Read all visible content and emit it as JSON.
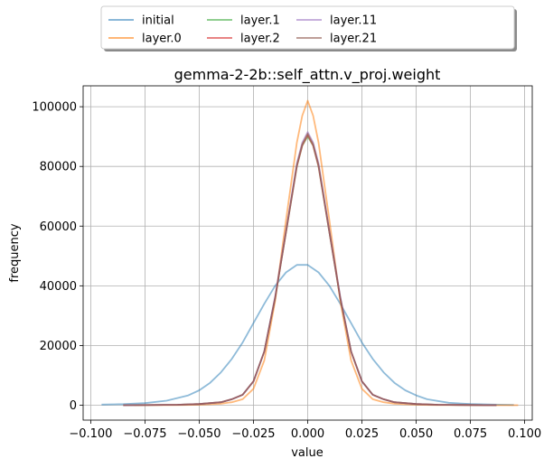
{
  "chart_data": {
    "type": "line",
    "title": "gemma-2-2b::self_attn.v_proj.weight",
    "xlabel": "value",
    "ylabel": "frequency",
    "xlim": [
      -0.1035,
      0.1035
    ],
    "ylim": [
      -5000,
      107000
    ],
    "grid": true,
    "legend_placement": "top-center, above plot (4 columns, shadowed box)",
    "x_ticks": [
      -0.1,
      -0.075,
      -0.05,
      -0.025,
      0.0,
      0.025,
      0.05,
      0.075,
      0.1
    ],
    "x_tick_labels": [
      "−0.100",
      "−0.075",
      "−0.050",
      "−0.025",
      "0.000",
      "0.025",
      "0.050",
      "0.075",
      "0.100"
    ],
    "y_ticks": [
      0,
      20000,
      40000,
      60000,
      80000,
      100000
    ],
    "y_tick_labels": [
      "0",
      "20000",
      "40000",
      "60000",
      "80000",
      "100000"
    ],
    "series": [
      {
        "name": "initial",
        "color": "#1f77b4",
        "opacity": 0.5,
        "x": [
          -0.095,
          -0.085,
          -0.075,
          -0.065,
          -0.055,
          -0.05,
          -0.045,
          -0.04,
          -0.035,
          -0.03,
          -0.025,
          -0.02,
          -0.015,
          -0.01,
          -0.005,
          0.0,
          0.005,
          0.01,
          0.015,
          0.02,
          0.025,
          0.03,
          0.035,
          0.04,
          0.045,
          0.05,
          0.055,
          0.065,
          0.075,
          0.085,
          0.095
        ],
        "y": [
          200,
          350,
          700,
          1500,
          3300,
          5000,
          7500,
          11000,
          15500,
          21000,
          27500,
          34000,
          40000,
          44500,
          47000,
          47000,
          44500,
          40000,
          34000,
          27500,
          21000,
          15500,
          11000,
          7500,
          5000,
          3300,
          2000,
          800,
          400,
          200,
          100
        ]
      },
      {
        "name": "layer.0",
        "color": "#ff7f0e",
        "opacity": 0.55,
        "x": [
          -0.08,
          -0.06,
          -0.05,
          -0.04,
          -0.035,
          -0.03,
          -0.025,
          -0.02,
          -0.015,
          -0.01,
          -0.005,
          -0.0025,
          0.0,
          0.0025,
          0.005,
          0.01,
          0.015,
          0.02,
          0.025,
          0.03,
          0.035,
          0.04,
          0.05,
          0.06,
          0.08,
          0.097
        ],
        "y": [
          0,
          50,
          150,
          500,
          1000,
          2000,
          5500,
          15000,
          35000,
          62000,
          88000,
          97000,
          102000,
          97000,
          88000,
          62000,
          35000,
          15000,
          5500,
          2000,
          1000,
          500,
          150,
          50,
          0,
          0
        ]
      },
      {
        "name": "layer.1",
        "color": "#2ca02c",
        "opacity": 0.5,
        "x": [
          -0.085,
          -0.06,
          -0.05,
          -0.04,
          -0.035,
          -0.03,
          -0.025,
          -0.02,
          -0.015,
          -0.01,
          -0.005,
          -0.0025,
          0.0,
          0.0025,
          0.005,
          0.01,
          0.015,
          0.02,
          0.025,
          0.03,
          0.035,
          0.04,
          0.05,
          0.06,
          0.087
        ],
        "y": [
          0,
          150,
          400,
          1000,
          2000,
          3500,
          8000,
          18000,
          36000,
          58000,
          80000,
          87000,
          90000,
          87000,
          80000,
          58000,
          36000,
          18000,
          8000,
          3500,
          2000,
          1000,
          400,
          150,
          0
        ]
      },
      {
        "name": "layer.2",
        "color": "#d62728",
        "opacity": 0.55,
        "x": [
          -0.085,
          -0.06,
          -0.05,
          -0.04,
          -0.035,
          -0.03,
          -0.025,
          -0.02,
          -0.015,
          -0.01,
          -0.005,
          -0.0025,
          0.0,
          0.0025,
          0.005,
          0.01,
          0.015,
          0.02,
          0.025,
          0.03,
          0.035,
          0.04,
          0.05,
          0.06,
          0.087
        ],
        "y": [
          0,
          150,
          400,
          1000,
          2000,
          3500,
          8000,
          18000,
          36000,
          58000,
          80000,
          87000,
          90500,
          87000,
          80000,
          58000,
          36000,
          18000,
          8000,
          3500,
          2000,
          1000,
          400,
          150,
          0
        ]
      },
      {
        "name": "layer.11",
        "color": "#9467bd",
        "opacity": 0.5,
        "x": [
          -0.085,
          -0.06,
          -0.05,
          -0.04,
          -0.035,
          -0.03,
          -0.025,
          -0.02,
          -0.015,
          -0.01,
          -0.005,
          -0.0025,
          0.0,
          0.0025,
          0.005,
          0.01,
          0.015,
          0.02,
          0.025,
          0.03,
          0.035,
          0.04,
          0.05,
          0.06,
          0.087
        ],
        "y": [
          0,
          150,
          400,
          1000,
          2000,
          3500,
          8000,
          18000,
          36500,
          58500,
          81000,
          88000,
          91500,
          88000,
          81000,
          58500,
          36500,
          18000,
          8000,
          3500,
          2000,
          1000,
          400,
          150,
          0
        ]
      },
      {
        "name": "layer.21",
        "color": "#8c564b",
        "opacity": 0.55,
        "x": [
          -0.085,
          -0.06,
          -0.05,
          -0.04,
          -0.035,
          -0.03,
          -0.025,
          -0.02,
          -0.015,
          -0.01,
          -0.005,
          -0.0025,
          0.0,
          0.0025,
          0.005,
          0.01,
          0.015,
          0.02,
          0.025,
          0.03,
          0.035,
          0.04,
          0.05,
          0.06,
          0.087
        ],
        "y": [
          0,
          150,
          400,
          1000,
          2000,
          3500,
          8000,
          18000,
          36000,
          58000,
          80500,
          87500,
          91000,
          87500,
          80500,
          58000,
          36000,
          18000,
          8000,
          3500,
          2000,
          1000,
          400,
          150,
          0
        ]
      }
    ]
  }
}
